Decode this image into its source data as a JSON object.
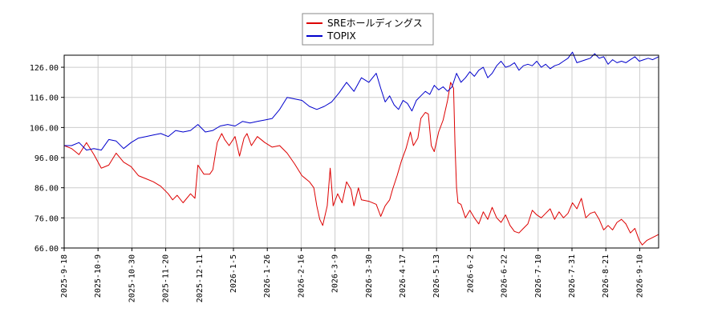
{
  "chart_data": {
    "type": "line",
    "title": "",
    "xlabel": "",
    "ylabel": "",
    "ylim": [
      66,
      130
    ],
    "y_ticks": [
      66,
      76,
      86,
      96,
      106,
      116,
      126
    ],
    "y_tick_labels": [
      "66.00",
      "76.00",
      "86.00",
      "96.00",
      "106.00",
      "116.00",
      "126.00"
    ],
    "x_ticks": [
      "2025-9-18",
      "2025-10-9",
      "2025-10-30",
      "2025-11-20",
      "2025-12-11",
      "2026-1-5",
      "2026-1-26",
      "2026-2-16",
      "2026-3-9",
      "2026-3-30",
      "2026-4-17",
      "2026-5-13",
      "2026-6-2",
      "2026-6-22",
      "2026-7-10",
      "2026-7-31",
      "2026-8-21",
      "2026-9-10"
    ],
    "grid": true,
    "legend_position": "top-center",
    "series": [
      {
        "name": "SREホールディングス",
        "color": "#dd0000",
        "values": [
          [
            0,
            100.0
          ],
          [
            0.5,
            99.0
          ],
          [
            1,
            97.0
          ],
          [
            1.5,
            101.0
          ],
          [
            2,
            97.0
          ],
          [
            2.5,
            92.5
          ],
          [
            3,
            93.5
          ],
          [
            3.5,
            97.5
          ],
          [
            4,
            94.5
          ],
          [
            4.5,
            93.0
          ],
          [
            5,
            90.0
          ],
          [
            5.5,
            89.0
          ],
          [
            6,
            88.0
          ],
          [
            6.5,
            86.5
          ],
          [
            7,
            84.0
          ],
          [
            7.3,
            82.0
          ],
          [
            7.6,
            83.5
          ],
          [
            8,
            81.0
          ],
          [
            8.5,
            84.0
          ],
          [
            8.8,
            82.5
          ],
          [
            9.0,
            93.5
          ],
          [
            9.4,
            90.5
          ],
          [
            9.8,
            90.5
          ],
          [
            10,
            92.0
          ],
          [
            10.3,
            101.0
          ],
          [
            10.6,
            104.0
          ],
          [
            10.8,
            102.0
          ],
          [
            11.1,
            100.0
          ],
          [
            11.5,
            103.0
          ],
          [
            11.8,
            96.5
          ],
          [
            12.1,
            102.5
          ],
          [
            12.3,
            104.0
          ],
          [
            12.6,
            100.0
          ],
          [
            13,
            103.0
          ],
          [
            13.5,
            101.0
          ],
          [
            14,
            99.5
          ],
          [
            14.5,
            100.0
          ],
          [
            15,
            97.5
          ],
          [
            15.5,
            94.0
          ],
          [
            16,
            90.0
          ],
          [
            16.5,
            88.0
          ],
          [
            16.8,
            86.0
          ],
          [
            17,
            80.0
          ],
          [
            17.2,
            75.5
          ],
          [
            17.4,
            73.5
          ],
          [
            17.7,
            80.0
          ],
          [
            17.9,
            92.5
          ],
          [
            18.1,
            80.0
          ],
          [
            18.4,
            84.0
          ],
          [
            18.7,
            81.0
          ],
          [
            19,
            88.0
          ],
          [
            19.3,
            85.5
          ],
          [
            19.5,
            80.0
          ],
          [
            19.8,
            86.0
          ],
          [
            20,
            82.0
          ],
          [
            20.5,
            81.5
          ],
          [
            21,
            80.5
          ],
          [
            21.3,
            76.5
          ],
          [
            21.6,
            80.0
          ],
          [
            21.9,
            82.0
          ],
          [
            22.1,
            85.5
          ],
          [
            22.4,
            90.0
          ],
          [
            22.7,
            95.0
          ],
          [
            23,
            99.0
          ],
          [
            23.3,
            104.5
          ],
          [
            23.5,
            100.0
          ],
          [
            23.8,
            102.5
          ],
          [
            24.0,
            109.0
          ],
          [
            24.3,
            111.0
          ],
          [
            24.5,
            110.5
          ],
          [
            24.7,
            100.0
          ],
          [
            24.9,
            98.0
          ],
          [
            25.2,
            104.5
          ],
          [
            25.5,
            108.5
          ],
          [
            25.8,
            115.0
          ],
          [
            26.0,
            121.0
          ],
          [
            26.2,
            119.0
          ],
          [
            26.3,
            100.0
          ],
          [
            26.4,
            86.0
          ],
          [
            26.5,
            81.0
          ],
          [
            26.7,
            80.5
          ],
          [
            27.0,
            76.0
          ],
          [
            27.3,
            78.5
          ],
          [
            27.6,
            76.0
          ],
          [
            27.9,
            74.0
          ],
          [
            28.2,
            78.0
          ],
          [
            28.5,
            75.5
          ],
          [
            28.8,
            79.5
          ],
          [
            29.1,
            76.0
          ],
          [
            29.4,
            74.5
          ],
          [
            29.7,
            77.0
          ],
          [
            30.0,
            73.5
          ],
          [
            30.3,
            71.5
          ],
          [
            30.6,
            71.0
          ],
          [
            30.9,
            72.5
          ],
          [
            31.2,
            74.0
          ],
          [
            31.5,
            78.5
          ],
          [
            31.8,
            77.0
          ],
          [
            32.1,
            76.0
          ],
          [
            32.4,
            77.5
          ],
          [
            32.7,
            79.0
          ],
          [
            33.0,
            75.5
          ],
          [
            33.3,
            78.0
          ],
          [
            33.6,
            76.0
          ],
          [
            33.9,
            77.5
          ],
          [
            34.2,
            81.0
          ],
          [
            34.5,
            79.0
          ],
          [
            34.8,
            82.5
          ],
          [
            35.1,
            76.0
          ],
          [
            35.4,
            77.5
          ],
          [
            35.7,
            78.0
          ],
          [
            36.0,
            75.5
          ],
          [
            36.3,
            72.0
          ],
          [
            36.6,
            73.5
          ],
          [
            36.9,
            72.0
          ],
          [
            37.2,
            74.5
          ],
          [
            37.5,
            75.5
          ],
          [
            37.8,
            74.0
          ],
          [
            38.1,
            71.0
          ],
          [
            38.4,
            72.5
          ],
          [
            38.7,
            68.5
          ],
          [
            38.9,
            67.0
          ],
          [
            39.2,
            68.5
          ],
          [
            39.6,
            69.5
          ],
          [
            40.0,
            70.5
          ]
        ]
      },
      {
        "name": "TOPIX",
        "color": "#0000cc",
        "values": [
          [
            0,
            100.0
          ],
          [
            0.5,
            100.0
          ],
          [
            1,
            101.0
          ],
          [
            1.5,
            98.5
          ],
          [
            2,
            99.0
          ],
          [
            2.5,
            98.5
          ],
          [
            3,
            102.0
          ],
          [
            3.5,
            101.5
          ],
          [
            4,
            99.0
          ],
          [
            4.5,
            101.0
          ],
          [
            5,
            102.5
          ],
          [
            5.5,
            103.0
          ],
          [
            6,
            103.5
          ],
          [
            6.5,
            104.0
          ],
          [
            7,
            103.0
          ],
          [
            7.5,
            105.0
          ],
          [
            8,
            104.5
          ],
          [
            8.5,
            105.0
          ],
          [
            9,
            107.0
          ],
          [
            9.5,
            104.5
          ],
          [
            10,
            105.0
          ],
          [
            10.5,
            106.5
          ],
          [
            11,
            107.0
          ],
          [
            11.5,
            106.5
          ],
          [
            12,
            108.0
          ],
          [
            12.5,
            107.5
          ],
          [
            13,
            108.0
          ],
          [
            13.5,
            108.5
          ],
          [
            14,
            109.0
          ],
          [
            14.5,
            112.0
          ],
          [
            15,
            116.0
          ],
          [
            15.5,
            115.5
          ],
          [
            16,
            115.0
          ],
          [
            16.5,
            113.0
          ],
          [
            17,
            112.0
          ],
          [
            17.5,
            113.0
          ],
          [
            18,
            114.5
          ],
          [
            18.5,
            117.5
          ],
          [
            19,
            121.0
          ],
          [
            19.5,
            118.0
          ],
          [
            20,
            122.5
          ],
          [
            20.5,
            121.0
          ],
          [
            21,
            124.0
          ],
          [
            21.3,
            119.0
          ],
          [
            21.6,
            114.5
          ],
          [
            21.9,
            116.5
          ],
          [
            22.2,
            113.5
          ],
          [
            22.5,
            112.0
          ],
          [
            22.8,
            115.0
          ],
          [
            23.1,
            114.0
          ],
          [
            23.4,
            111.5
          ],
          [
            23.7,
            115.0
          ],
          [
            24.0,
            116.5
          ],
          [
            24.3,
            118.0
          ],
          [
            24.6,
            117.0
          ],
          [
            24.9,
            120.0
          ],
          [
            25.2,
            118.5
          ],
          [
            25.5,
            119.5
          ],
          [
            25.8,
            118.0
          ],
          [
            26.1,
            119.5
          ],
          [
            26.4,
            124.0
          ],
          [
            26.7,
            121.0
          ],
          [
            27.0,
            122.5
          ],
          [
            27.3,
            124.5
          ],
          [
            27.6,
            123.0
          ],
          [
            27.9,
            125.0
          ],
          [
            28.2,
            126.0
          ],
          [
            28.5,
            122.5
          ],
          [
            28.8,
            124.0
          ],
          [
            29.1,
            126.5
          ],
          [
            29.4,
            128.0
          ],
          [
            29.7,
            126.0
          ],
          [
            30.0,
            126.5
          ],
          [
            30.3,
            127.5
          ],
          [
            30.6,
            125.0
          ],
          [
            30.9,
            126.5
          ],
          [
            31.2,
            127.0
          ],
          [
            31.5,
            126.5
          ],
          [
            31.8,
            128.0
          ],
          [
            32.1,
            126.0
          ],
          [
            32.4,
            127.0
          ],
          [
            32.7,
            125.5
          ],
          [
            33.0,
            126.5
          ],
          [
            33.3,
            127.0
          ],
          [
            33.6,
            128.0
          ],
          [
            33.9,
            129.0
          ],
          [
            34.2,
            131.0
          ],
          [
            34.5,
            127.5
          ],
          [
            34.8,
            128.0
          ],
          [
            35.1,
            128.5
          ],
          [
            35.4,
            129.0
          ],
          [
            35.7,
            130.5
          ],
          [
            36.0,
            129.0
          ],
          [
            36.3,
            129.5
          ],
          [
            36.6,
            127.0
          ],
          [
            36.9,
            128.5
          ],
          [
            37.2,
            127.5
          ],
          [
            37.5,
            128.0
          ],
          [
            37.8,
            127.5
          ],
          [
            38.1,
            128.5
          ],
          [
            38.4,
            129.5
          ],
          [
            38.7,
            128.0
          ],
          [
            39.0,
            128.5
          ],
          [
            39.3,
            129.0
          ],
          [
            39.6,
            128.5
          ],
          [
            40.0,
            129.5
          ]
        ]
      }
    ]
  }
}
